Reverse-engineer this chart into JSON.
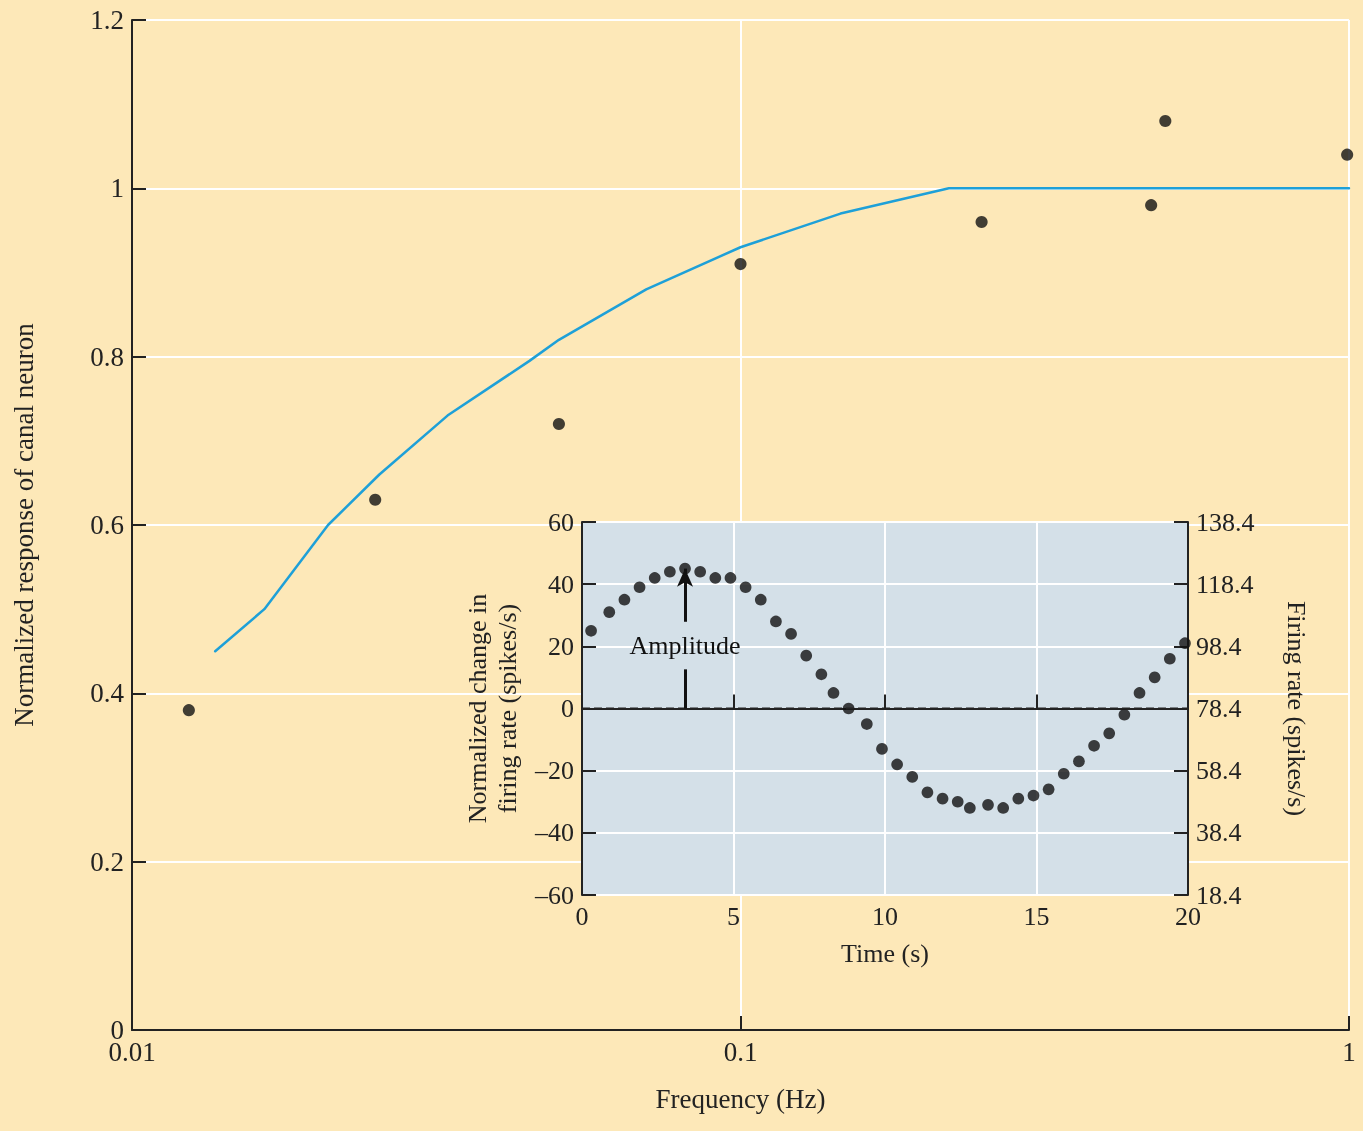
{
  "chart_data": [
    {
      "type": "scatter",
      "xlabel": "Frequency (Hz)",
      "ylabel": "Normalized response of canal neuron",
      "log": "x",
      "xlim": [
        0.01,
        1
      ],
      "xticks": [
        0.01,
        0.1,
        1
      ],
      "ylim": [
        0,
        1.2
      ],
      "yticks": [
        0,
        0.2,
        0.4,
        0.6,
        0.8,
        1,
        1.2
      ],
      "grid": true,
      "marker": "circle",
      "series": [
        {
          "type": "scatter",
          "color": "#111111",
          "x": [
            0.0124,
            0.0251,
            0.0503,
            0.1,
            0.249,
            0.473,
            0.499,
            0.993
          ],
          "values": [
            0.38,
            0.63,
            0.72,
            0.91,
            0.96,
            0.98,
            1.08,
            1.04
          ]
        },
        {
          "type": "line",
          "color": "#1ea0d8",
          "marker": "none",
          "x": [
            0.0137,
            0.0165,
            0.021,
            0.0255,
            0.033,
            0.045,
            0.0503,
            0.07,
            0.1,
            0.146,
            0.22,
            0.3,
            0.5,
            1
          ],
          "values": [
            0.45,
            0.5,
            0.6,
            0.66,
            0.73,
            0.795,
            0.82,
            0.88,
            0.93,
            0.97,
            1.0,
            1.0,
            1.0,
            1.0
          ]
        }
      ]
    },
    {
      "type": "scatter",
      "xlabel": "Time (s)",
      "ylabel": "Normalized change in firing rate (spikes/s)",
      "y2label": "Firing rate (spikes/s)",
      "xlim": [
        0,
        20
      ],
      "xticks": [
        0,
        5,
        10,
        15,
        20
      ],
      "ylim": [
        -60,
        60
      ],
      "yticks": [
        {
          "value": -60,
          "label": "–60"
        },
        {
          "value": -40,
          "label": "–40"
        },
        {
          "value": -20,
          "label": "–20"
        },
        0,
        20,
        40,
        60
      ],
      "y2lim": [
        18.4,
        138.4
      ],
      "y2ticks": [
        18.4,
        38.4,
        58.4,
        78.4,
        98.4,
        118.4,
        138.4
      ],
      "grid": true,
      "marker": "circle",
      "ref_lines": [
        {
          "axis": "y",
          "value": 0,
          "color": "#222222",
          "line_style": "dashed"
        }
      ],
      "annotations": [
        {
          "text": "Amplitude",
          "x": 3.4,
          "y": 45
        }
      ],
      "series": [
        {
          "type": "scatter",
          "color": "#111111",
          "x": [
            0.3,
            0.9,
            1.4,
            1.9,
            2.4,
            2.9,
            3.4,
            3.9,
            4.4,
            4.9,
            5.4,
            5.9,
            6.4,
            6.9,
            7.4,
            7.9,
            8.3,
            8.8,
            9.4,
            9.9,
            10.4,
            10.9,
            11.4,
            11.9,
            12.4,
            12.8,
            13.4,
            13.9,
            14.4,
            14.9,
            15.4,
            15.9,
            16.4,
            16.9,
            17.4,
            17.9,
            18.4,
            18.9,
            19.4,
            19.9
          ],
          "values": [
            25,
            31,
            35,
            39,
            42,
            44,
            45,
            44,
            42,
            42,
            39,
            35,
            28,
            24,
            17,
            11,
            5,
            0,
            -5,
            -13,
            -18,
            -22,
            -27,
            -29,
            -30,
            -32,
            -31,
            -32,
            -29,
            -28,
            -26,
            -21,
            -17,
            -12,
            -8,
            -2,
            5,
            10,
            16,
            21
          ]
        }
      ]
    }
  ]
}
